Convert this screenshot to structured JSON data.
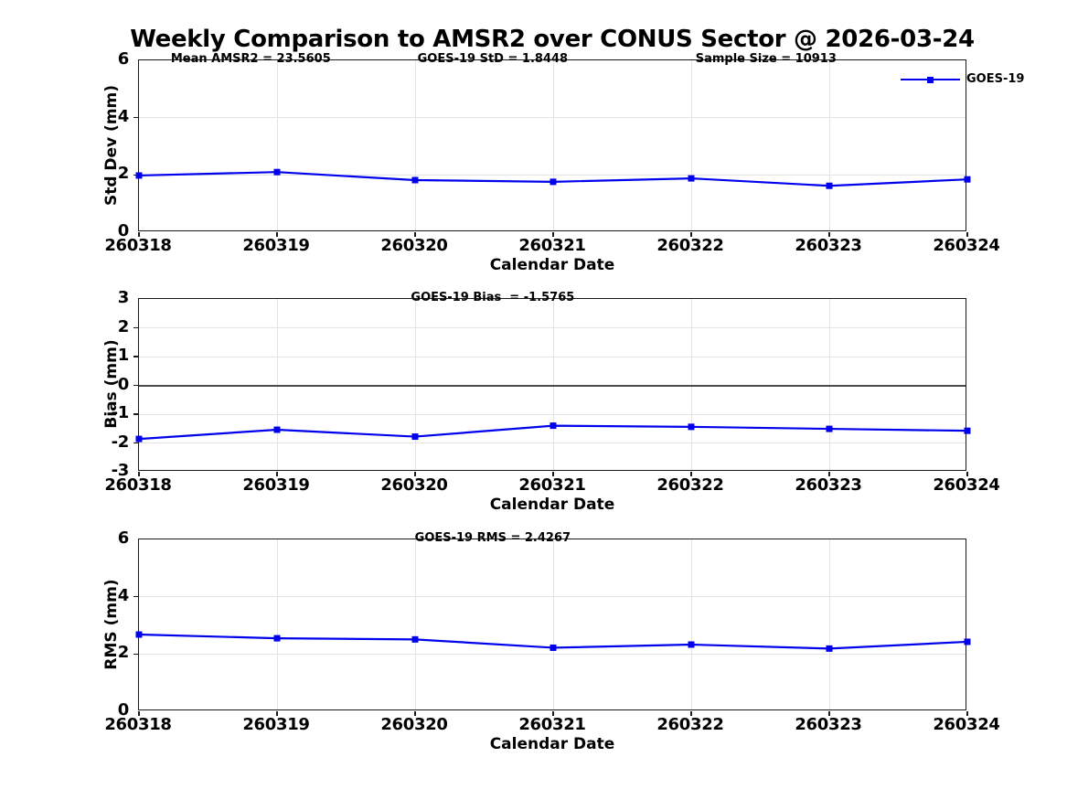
{
  "title": "Weekly Comparison to AMSR2 over CONUS Sector @ 2026-03-24",
  "colors": {
    "line": "#0000ee",
    "grid": "#e3e3e3",
    "axis": "#1a1a1a",
    "zero_line": "#4a4a4a",
    "background": "#ffffff"
  },
  "chart_data": [
    {
      "type": "line",
      "ylabel": "Std Dev (mm)",
      "xlabel": "Calendar Date",
      "categories": [
        "260318",
        "260319",
        "260320",
        "260321",
        "260322",
        "260323",
        "260324"
      ],
      "series": [
        {
          "name": "GOES-19",
          "values": [
            1.98,
            2.1,
            1.82,
            1.76,
            1.88,
            1.62,
            1.8448
          ]
        }
      ],
      "ylim": [
        0,
        6
      ],
      "yticks": [
        0,
        2,
        4,
        6
      ],
      "grid": true,
      "marker": "square",
      "legend": {
        "label": "GOES-19",
        "position": "top-right"
      },
      "annotations": [
        {
          "text": "Mean AMSR2 = 23.5605",
          "xfrac": 0.135
        },
        {
          "text": "GOES-19 StD = 1.8448",
          "xfrac": 0.427
        },
        {
          "text": "Sample Size = 10913",
          "xfrac": 0.757
        }
      ]
    },
    {
      "type": "line",
      "ylabel": "Bias (mm)",
      "xlabel": "Calendar Date",
      "categories": [
        "260318",
        "260319",
        "260320",
        "260321",
        "260322",
        "260323",
        "260324"
      ],
      "series": [
        {
          "name": "GOES-19",
          "values": [
            -1.86,
            -1.54,
            -1.78,
            -1.4,
            -1.44,
            -1.51,
            -1.5765
          ]
        }
      ],
      "ylim": [
        -3,
        3
      ],
      "yticks": [
        3,
        2,
        1,
        0,
        -1,
        -2,
        -3
      ],
      "grid": true,
      "zero_line": true,
      "marker": "square",
      "annotations": [
        {
          "text": "GOES-19 Bias  = -1.5765",
          "xfrac": 0.427
        }
      ]
    },
    {
      "type": "line",
      "ylabel": "RMS (mm)",
      "xlabel": "Calendar Date",
      "categories": [
        "260318",
        "260319",
        "260320",
        "260321",
        "260322",
        "260323",
        "260324"
      ],
      "series": [
        {
          "name": "GOES-19",
          "values": [
            2.68,
            2.55,
            2.51,
            2.22,
            2.33,
            2.19,
            2.4267
          ]
        }
      ],
      "ylim": [
        0,
        6
      ],
      "yticks": [
        0,
        2,
        4,
        6
      ],
      "grid": true,
      "marker": "square",
      "annotations": [
        {
          "text": "GOES-19 RMS = 2.4267",
          "xfrac": 0.427
        }
      ]
    }
  ]
}
